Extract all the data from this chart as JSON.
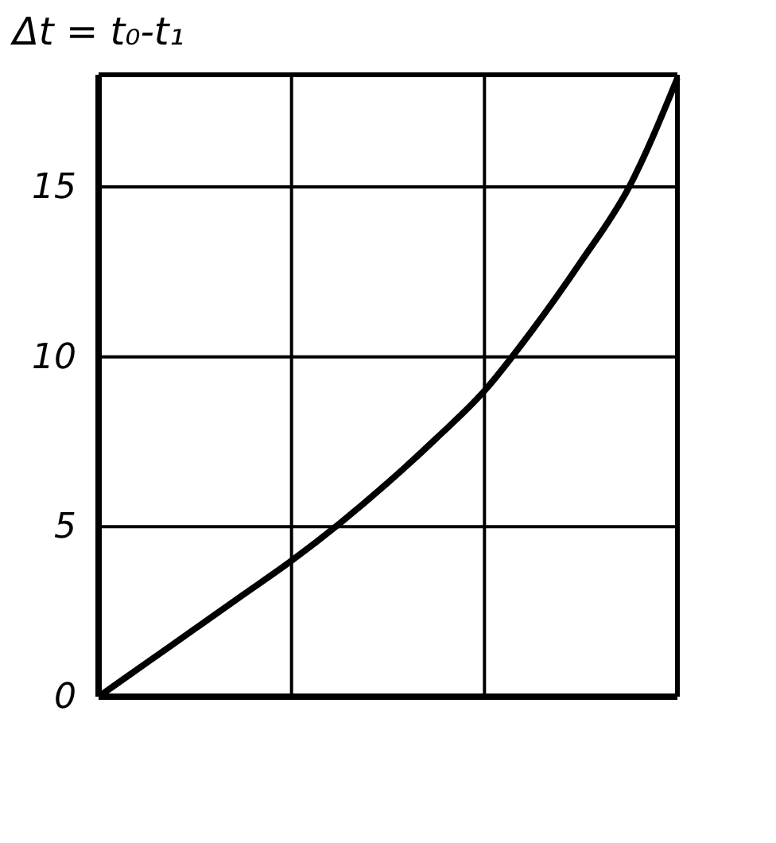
{
  "chart_data": {
    "type": "line",
    "ylabel": "Δt = t₀-t₁",
    "categories": [
      null,
      null,
      null,
      null,
      null,
      null,
      null,
      null,
      null,
      null,
      null,
      null,
      null
    ],
    "series": [
      {
        "color": "#000000",
        "values": [
          0,
          1.0,
          2.0,
          3.0,
          4.0,
          5.1,
          6.3,
          7.6,
          9.0,
          10.8,
          12.8,
          15.0,
          18.2
        ]
      }
    ],
    "ylim": [
      0,
      18.3
    ],
    "yticks": [
      0,
      5,
      10,
      15
    ],
    "grid": true,
    "line_style": "solid"
  }
}
